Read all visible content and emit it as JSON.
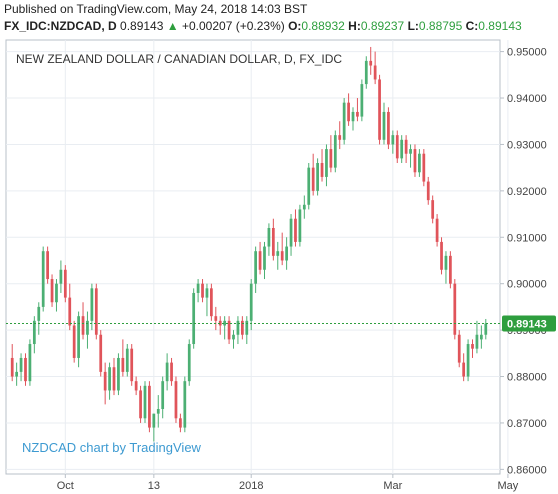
{
  "header": {
    "published": "Published on TradingView.com, May 24, 2018 14:03 BST",
    "symbol": "FX_IDC:NZDCAD, D",
    "price": "0.89143",
    "change_arrow": "▲",
    "change": "+0.00207 (+0.23%)",
    "o_label": "O:",
    "o_value": "0.88932",
    "h_label": "H:",
    "h_value": "0.89237",
    "l_label": "L:",
    "l_value": "0.88795",
    "c_label": "C:",
    "c_value": "0.89143"
  },
  "watermark": "NZDCAD chart by TradingView",
  "colors": {
    "up": "#4caf73",
    "down": "#e0545a",
    "grid": "#e9edf2",
    "axis": "#b9c0c8",
    "last": "#2e9e3e",
    "accent": "#3d9ad1"
  },
  "chart_data": {
    "type": "candlestick",
    "title": "NEW ZEALAND DOLLAR / CANADIAN DOLLAR, D, FX_IDC",
    "ylim": [
      0.859,
      0.9525
    ],
    "yticks": [
      "0.95000",
      "0.94000",
      "0.93000",
      "0.92000",
      "0.91000",
      "0.90000",
      "0.89000",
      "0.88000",
      "0.87000",
      "0.86000"
    ],
    "xticks": [
      "Oct",
      "13",
      "2018",
      "Mar",
      "May"
    ],
    "xtick_index": [
      12,
      32,
      54,
      86,
      112
    ],
    "last_price": "0.89143",
    "last_value": 0.89143,
    "candles": [
      [
        0.884,
        0.887,
        0.879,
        0.88
      ],
      [
        0.88,
        0.883,
        0.878,
        0.881
      ],
      [
        0.881,
        0.885,
        0.879,
        0.884
      ],
      [
        0.884,
        0.885,
        0.878,
        0.879
      ],
      [
        0.879,
        0.888,
        0.878,
        0.887
      ],
      [
        0.887,
        0.893,
        0.885,
        0.892
      ],
      [
        0.892,
        0.896,
        0.889,
        0.895
      ],
      [
        0.895,
        0.908,
        0.894,
        0.907
      ],
      [
        0.907,
        0.908,
        0.9,
        0.901
      ],
      [
        0.901,
        0.902,
        0.895,
        0.896
      ],
      [
        0.896,
        0.901,
        0.894,
        0.9
      ],
      [
        0.9,
        0.905,
        0.898,
        0.903
      ],
      [
        0.903,
        0.904,
        0.896,
        0.897
      ],
      [
        0.897,
        0.9,
        0.89,
        0.891
      ],
      [
        0.891,
        0.892,
        0.883,
        0.884
      ],
      [
        0.884,
        0.894,
        0.882,
        0.893
      ],
      [
        0.893,
        0.896,
        0.888,
        0.889
      ],
      [
        0.889,
        0.894,
        0.886,
        0.892
      ],
      [
        0.892,
        0.9,
        0.89,
        0.899
      ],
      [
        0.899,
        0.9,
        0.888,
        0.889
      ],
      [
        0.889,
        0.89,
        0.88,
        0.881
      ],
      [
        0.881,
        0.883,
        0.874,
        0.877
      ],
      [
        0.877,
        0.883,
        0.875,
        0.882
      ],
      [
        0.882,
        0.884,
        0.876,
        0.877
      ],
      [
        0.877,
        0.885,
        0.876,
        0.884
      ],
      [
        0.884,
        0.888,
        0.88,
        0.881
      ],
      [
        0.881,
        0.887,
        0.88,
        0.886
      ],
      [
        0.886,
        0.887,
        0.878,
        0.879
      ],
      [
        0.879,
        0.88,
        0.876,
        0.877
      ],
      [
        0.877,
        0.878,
        0.87,
        0.871
      ],
      [
        0.871,
        0.879,
        0.87,
        0.878
      ],
      [
        0.878,
        0.879,
        0.868,
        0.869
      ],
      [
        0.869,
        0.872,
        0.866,
        0.872
      ],
      [
        0.872,
        0.876,
        0.869,
        0.873
      ],
      [
        0.873,
        0.88,
        0.871,
        0.879
      ],
      [
        0.879,
        0.885,
        0.877,
        0.883
      ],
      [
        0.883,
        0.884,
        0.878,
        0.879
      ],
      [
        0.879,
        0.88,
        0.87,
        0.871
      ],
      [
        0.871,
        0.872,
        0.868,
        0.869
      ],
      [
        0.869,
        0.88,
        0.868,
        0.879
      ],
      [
        0.879,
        0.888,
        0.878,
        0.887
      ],
      [
        0.887,
        0.899,
        0.886,
        0.898
      ],
      [
        0.898,
        0.901,
        0.896,
        0.9
      ],
      [
        0.9,
        0.901,
        0.896,
        0.897
      ],
      [
        0.897,
        0.9,
        0.893,
        0.899
      ],
      [
        0.899,
        0.9,
        0.892,
        0.893
      ],
      [
        0.893,
        0.895,
        0.89,
        0.892
      ],
      [
        0.892,
        0.893,
        0.889,
        0.891
      ],
      [
        0.891,
        0.893,
        0.888,
        0.892
      ],
      [
        0.892,
        0.893,
        0.887,
        0.888
      ],
      [
        0.888,
        0.89,
        0.886,
        0.889
      ],
      [
        0.889,
        0.893,
        0.887,
        0.892
      ],
      [
        0.892,
        0.893,
        0.888,
        0.889
      ],
      [
        0.889,
        0.893,
        0.887,
        0.892
      ],
      [
        0.892,
        0.901,
        0.89,
        0.9
      ],
      [
        0.9,
        0.908,
        0.898,
        0.907
      ],
      [
        0.907,
        0.909,
        0.902,
        0.903
      ],
      [
        0.903,
        0.909,
        0.901,
        0.908
      ],
      [
        0.908,
        0.913,
        0.906,
        0.912
      ],
      [
        0.912,
        0.914,
        0.905,
        0.906
      ],
      [
        0.906,
        0.909,
        0.903,
        0.907
      ],
      [
        0.907,
        0.911,
        0.904,
        0.905
      ],
      [
        0.905,
        0.91,
        0.903,
        0.908
      ],
      [
        0.908,
        0.915,
        0.906,
        0.914
      ],
      [
        0.914,
        0.916,
        0.908,
        0.909
      ],
      [
        0.909,
        0.917,
        0.908,
        0.916
      ],
      [
        0.916,
        0.919,
        0.914,
        0.917
      ],
      [
        0.917,
        0.926,
        0.916,
        0.925
      ],
      [
        0.925,
        0.928,
        0.919,
        0.92
      ],
      [
        0.92,
        0.927,
        0.919,
        0.926
      ],
      [
        0.926,
        0.929,
        0.922,
        0.923
      ],
      [
        0.923,
        0.93,
        0.921,
        0.929
      ],
      [
        0.929,
        0.932,
        0.924,
        0.925
      ],
      [
        0.925,
        0.933,
        0.924,
        0.932
      ],
      [
        0.932,
        0.935,
        0.929,
        0.931
      ],
      [
        0.931,
        0.94,
        0.93,
        0.939
      ],
      [
        0.939,
        0.941,
        0.934,
        0.935
      ],
      [
        0.935,
        0.938,
        0.933,
        0.937
      ],
      [
        0.937,
        0.94,
        0.935,
        0.936
      ],
      [
        0.936,
        0.944,
        0.935,
        0.943
      ],
      [
        0.943,
        0.949,
        0.942,
        0.948
      ],
      [
        0.948,
        0.951,
        0.945,
        0.947
      ],
      [
        0.947,
        0.95,
        0.943,
        0.944
      ],
      [
        0.944,
        0.945,
        0.93,
        0.931
      ],
      [
        0.931,
        0.939,
        0.93,
        0.937
      ],
      [
        0.937,
        0.938,
        0.929,
        0.93
      ],
      [
        0.93,
        0.933,
        0.928,
        0.932
      ],
      [
        0.932,
        0.933,
        0.926,
        0.927
      ],
      [
        0.927,
        0.932,
        0.926,
        0.931
      ],
      [
        0.931,
        0.932,
        0.926,
        0.928
      ],
      [
        0.928,
        0.93,
        0.925,
        0.929
      ],
      [
        0.929,
        0.93,
        0.923,
        0.924
      ],
      [
        0.924,
        0.929,
        0.923,
        0.928
      ],
      [
        0.928,
        0.929,
        0.921,
        0.922
      ],
      [
        0.922,
        0.923,
        0.917,
        0.918
      ],
      [
        0.918,
        0.919,
        0.913,
        0.914
      ],
      [
        0.914,
        0.915,
        0.908,
        0.909
      ],
      [
        0.909,
        0.91,
        0.902,
        0.903
      ],
      [
        0.903,
        0.907,
        0.9,
        0.906
      ],
      [
        0.906,
        0.907,
        0.899,
        0.9
      ],
      [
        0.9,
        0.901,
        0.888,
        0.889
      ],
      [
        0.889,
        0.89,
        0.882,
        0.883
      ],
      [
        0.883,
        0.885,
        0.879,
        0.88
      ],
      [
        0.88,
        0.888,
        0.879,
        0.887
      ],
      [
        0.887,
        0.888,
        0.884,
        0.886
      ],
      [
        0.886,
        0.892,
        0.885,
        0.889
      ],
      [
        0.888,
        0.891,
        0.886,
        0.889
      ],
      [
        0.889,
        0.8924,
        0.888,
        0.8914
      ]
    ]
  }
}
